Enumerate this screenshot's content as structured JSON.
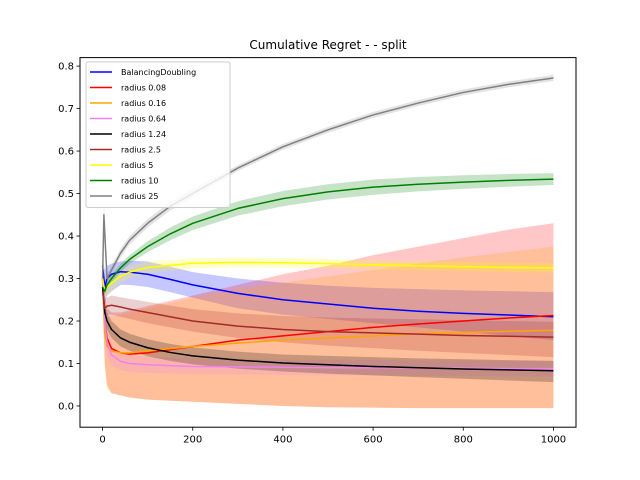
{
  "chart_data": {
    "type": "line",
    "title": "Cumulative Regret -  - split",
    "xlabel": "",
    "ylabel": "",
    "xlim": [
      -50,
      1050
    ],
    "ylim": [
      -0.05,
      0.82
    ],
    "xticks": [
      0,
      200,
      400,
      600,
      800,
      1000
    ],
    "yticks": [
      0.0,
      0.1,
      0.2,
      0.3,
      0.4,
      0.5,
      0.6,
      0.7,
      0.8
    ],
    "grid": false,
    "legend_position": "top-left",
    "series": [
      {
        "name": "BalancingDoubling",
        "color": "#0000ff",
        "x": [
          0,
          5,
          10,
          20,
          40,
          60,
          100,
          150,
          200,
          300,
          400,
          500,
          600,
          700,
          800,
          900,
          1000
        ],
        "values": [
          0.33,
          0.28,
          0.3,
          0.31,
          0.316,
          0.315,
          0.31,
          0.298,
          0.285,
          0.265,
          0.25,
          0.24,
          0.23,
          0.223,
          0.218,
          0.214,
          0.21
        ],
        "lower": [
          0.31,
          0.24,
          0.26,
          0.27,
          0.285,
          0.285,
          0.28,
          0.268,
          0.255,
          0.23,
          0.215,
          0.205,
          0.195,
          0.185,
          0.175,
          0.165,
          0.155
        ],
        "upper": [
          0.35,
          0.32,
          0.33,
          0.335,
          0.34,
          0.342,
          0.34,
          0.328,
          0.315,
          0.3,
          0.29,
          0.283,
          0.278,
          0.275,
          0.272,
          0.27,
          0.268
        ]
      },
      {
        "name": "radius 0.08",
        "color": "#ff0000",
        "x": [
          0,
          5,
          10,
          20,
          40,
          60,
          100,
          200,
          300,
          400,
          500,
          600,
          700,
          800,
          900,
          1000
        ],
        "values": [
          0.3,
          0.2,
          0.16,
          0.135,
          0.125,
          0.122,
          0.125,
          0.14,
          0.155,
          0.165,
          0.175,
          0.185,
          0.193,
          0.2,
          0.207,
          0.213
        ],
        "lower": [
          0.25,
          0.1,
          0.05,
          0.03,
          0.025,
          0.02,
          0.015,
          0.01,
          0.005,
          0.0,
          -0.003,
          -0.004,
          -0.005,
          -0.005,
          -0.005,
          -0.005
        ],
        "upper": [
          0.33,
          0.26,
          0.23,
          0.22,
          0.22,
          0.225,
          0.235,
          0.26,
          0.285,
          0.31,
          0.33,
          0.355,
          0.375,
          0.395,
          0.415,
          0.43
        ]
      },
      {
        "name": "radius 0.16",
        "color": "#ffa500",
        "x": [
          0,
          5,
          10,
          20,
          40,
          60,
          100,
          200,
          300,
          400,
          500,
          600,
          700,
          800,
          900,
          1000
        ],
        "values": [
          0.3,
          0.17,
          0.14,
          0.13,
          0.125,
          0.125,
          0.13,
          0.14,
          0.148,
          0.155,
          0.16,
          0.165,
          0.17,
          0.173,
          0.176,
          0.178
        ],
        "lower": [
          0.25,
          0.09,
          0.04,
          0.03,
          0.025,
          0.02,
          0.015,
          0.01,
          0.005,
          0.0,
          -0.003,
          -0.004,
          -0.005,
          -0.005,
          -0.005,
          -0.005
        ],
        "upper": [
          0.33,
          0.24,
          0.21,
          0.21,
          0.215,
          0.22,
          0.23,
          0.255,
          0.275,
          0.29,
          0.305,
          0.32,
          0.335,
          0.35,
          0.362,
          0.375
        ]
      },
      {
        "name": "radius 0.64",
        "color": "#ee82ee",
        "x": [
          0,
          5,
          10,
          20,
          40,
          60,
          100,
          200,
          300,
          400,
          500,
          600,
          700,
          800,
          900,
          1000
        ],
        "values": [
          0.3,
          0.2,
          0.15,
          0.12,
          0.105,
          0.1,
          0.097,
          0.093,
          0.092,
          0.091,
          0.09,
          0.09,
          0.089,
          0.089,
          0.088,
          0.088
        ],
        "lower": [
          0.28,
          0.17,
          0.12,
          0.095,
          0.085,
          0.08,
          0.078,
          0.075,
          0.074,
          0.073,
          0.072,
          0.072,
          0.071,
          0.071,
          0.07,
          0.07
        ],
        "upper": [
          0.32,
          0.23,
          0.18,
          0.145,
          0.125,
          0.12,
          0.116,
          0.111,
          0.11,
          0.109,
          0.108,
          0.108,
          0.107,
          0.107,
          0.106,
          0.106
        ]
      },
      {
        "name": "radius 1.24",
        "color": "#000000",
        "x": [
          0,
          5,
          10,
          20,
          40,
          60,
          100,
          150,
          200,
          300,
          400,
          500,
          600,
          700,
          800,
          900,
          1000
        ],
        "values": [
          0.28,
          0.22,
          0.2,
          0.18,
          0.16,
          0.15,
          0.137,
          0.126,
          0.118,
          0.108,
          0.101,
          0.097,
          0.093,
          0.09,
          0.087,
          0.085,
          0.083
        ],
        "lower": [
          0.26,
          0.2,
          0.18,
          0.16,
          0.14,
          0.13,
          0.117,
          0.106,
          0.098,
          0.088,
          0.081,
          0.076,
          0.072,
          0.068,
          0.064,
          0.06,
          0.056
        ],
        "upper": [
          0.3,
          0.24,
          0.22,
          0.2,
          0.18,
          0.17,
          0.157,
          0.146,
          0.138,
          0.128,
          0.121,
          0.118,
          0.115,
          0.112,
          0.11,
          0.108,
          0.106
        ]
      },
      {
        "name": "radius 2.5",
        "color": "#a52a2a",
        "x": [
          0,
          5,
          10,
          20,
          40,
          60,
          100,
          200,
          300,
          400,
          500,
          600,
          700,
          800,
          900,
          1000
        ],
        "values": [
          0.27,
          0.23,
          0.235,
          0.237,
          0.233,
          0.228,
          0.22,
          0.2,
          0.188,
          0.18,
          0.175,
          0.172,
          0.169,
          0.166,
          0.164,
          0.162
        ],
        "lower": [
          0.25,
          0.21,
          0.215,
          0.215,
          0.21,
          0.205,
          0.195,
          0.175,
          0.16,
          0.15,
          0.142,
          0.136,
          0.13,
          0.125,
          0.12,
          0.115
        ],
        "upper": [
          0.29,
          0.25,
          0.255,
          0.26,
          0.256,
          0.252,
          0.245,
          0.228,
          0.218,
          0.212,
          0.208,
          0.206,
          0.204,
          0.202,
          0.2,
          0.198
        ]
      },
      {
        "name": "radius 5",
        "color": "#ffff00",
        "x": [
          0,
          5,
          10,
          20,
          40,
          60,
          100,
          200,
          300,
          400,
          500,
          600,
          700,
          800,
          900,
          1000
        ],
        "values": [
          0.3,
          0.27,
          0.28,
          0.29,
          0.305,
          0.315,
          0.326,
          0.336,
          0.338,
          0.337,
          0.335,
          0.332,
          0.33,
          0.328,
          0.326,
          0.325
        ],
        "lower": [
          0.28,
          0.25,
          0.26,
          0.27,
          0.29,
          0.3,
          0.313,
          0.324,
          0.327,
          0.326,
          0.324,
          0.321,
          0.319,
          0.317,
          0.315,
          0.314
        ],
        "upper": [
          0.32,
          0.29,
          0.3,
          0.31,
          0.32,
          0.33,
          0.339,
          0.348,
          0.349,
          0.348,
          0.346,
          0.343,
          0.341,
          0.339,
          0.337,
          0.336
        ]
      },
      {
        "name": "radius 10",
        "color": "#008000",
        "x": [
          0,
          5,
          10,
          20,
          40,
          60,
          100,
          150,
          200,
          300,
          400,
          500,
          600,
          700,
          800,
          900,
          1000
        ],
        "values": [
          0.28,
          0.27,
          0.285,
          0.3,
          0.325,
          0.345,
          0.375,
          0.405,
          0.43,
          0.465,
          0.488,
          0.504,
          0.515,
          0.522,
          0.527,
          0.531,
          0.534
        ],
        "lower": [
          0.27,
          0.26,
          0.275,
          0.29,
          0.315,
          0.335,
          0.362,
          0.39,
          0.414,
          0.448,
          0.47,
          0.486,
          0.497,
          0.505,
          0.511,
          0.516,
          0.52
        ],
        "upper": [
          0.29,
          0.28,
          0.295,
          0.31,
          0.335,
          0.355,
          0.388,
          0.42,
          0.446,
          0.482,
          0.506,
          0.522,
          0.533,
          0.539,
          0.543,
          0.546,
          0.548
        ]
      },
      {
        "name": "radius 25",
        "color": "#808080",
        "x": [
          0,
          3,
          10,
          20,
          40,
          60,
          100,
          150,
          200,
          300,
          400,
          500,
          600,
          700,
          800,
          900,
          1000
        ],
        "values": [
          0.3,
          0.45,
          0.3,
          0.32,
          0.36,
          0.39,
          0.43,
          0.47,
          0.5,
          0.56,
          0.61,
          0.65,
          0.685,
          0.713,
          0.738,
          0.757,
          0.772
        ],
        "lower": [
          0.29,
          0.4,
          0.29,
          0.31,
          0.35,
          0.38,
          0.42,
          0.46,
          0.49,
          0.553,
          0.603,
          0.643,
          0.678,
          0.706,
          0.731,
          0.75,
          0.765
        ],
        "upper": [
          0.31,
          0.48,
          0.31,
          0.33,
          0.37,
          0.4,
          0.44,
          0.48,
          0.51,
          0.567,
          0.617,
          0.657,
          0.692,
          0.72,
          0.745,
          0.764,
          0.779
        ]
      }
    ]
  }
}
